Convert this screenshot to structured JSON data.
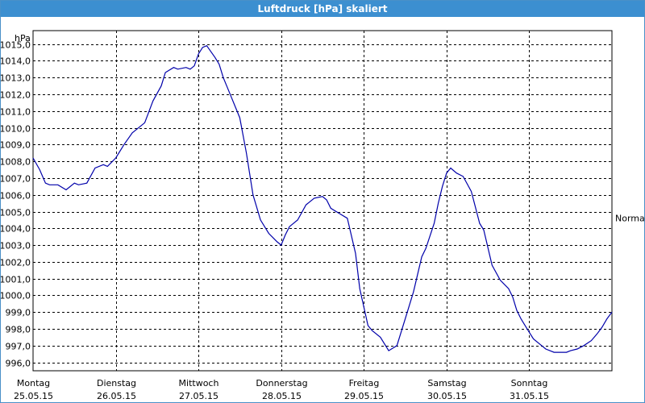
{
  "window": {
    "title": "Luftdruck [hPa] skaliert"
  },
  "colors": {
    "titlebar": "#3c8fd0",
    "line": "#0000aa",
    "grid": "#000000",
    "axis": "#000000"
  },
  "chart_data": {
    "type": "line",
    "title": "Luftdruck [hPa] skaliert",
    "ylabel": "hPa",
    "xlabel": "",
    "ylim": [
      995.5,
      1015.8
    ],
    "yticks": [
      996,
      997,
      998,
      999,
      1000,
      1001,
      1002,
      1003,
      1004,
      1005,
      1006,
      1007,
      1008,
      1009,
      1010,
      1011,
      1012,
      1013,
      1014,
      1015
    ],
    "ytick_labels": [
      "996,0",
      "997,0",
      "998,0",
      "999,0",
      "1000,0",
      "1001,0",
      "1002,0",
      "1003,0",
      "1004,0",
      "1005,0",
      "1006,0",
      "1007,0",
      "1008,0",
      "1009,0",
      "1010,0",
      "1011,0",
      "1012,0",
      "1013,0",
      "1014,0",
      "1015,0"
    ],
    "x_days": [
      {
        "day": "Montag",
        "date": "25.05.15"
      },
      {
        "day": "Dienstag",
        "date": "26.05.15"
      },
      {
        "day": "Mittwoch",
        "date": "27.05.15"
      },
      {
        "day": "Donnerstag",
        "date": "28.05.15"
      },
      {
        "day": "Freitag",
        "date": "29.05.15"
      },
      {
        "day": "Samstag",
        "date": "30.05.15"
      },
      {
        "day": "Sonntag",
        "date": "31.05.15"
      }
    ],
    "xlim": [
      0,
      7
    ],
    "reference_line": {
      "label": "Normal",
      "value": 1005.0
    },
    "grid": true,
    "series": [
      {
        "x": [
          0.0,
          0.08,
          0.15,
          0.2,
          0.3,
          0.4,
          0.5,
          0.55,
          0.65,
          0.75,
          0.85,
          0.9,
          1.0,
          1.1,
          1.2,
          1.25,
          1.35,
          1.45,
          1.55,
          1.6,
          1.7,
          1.75,
          1.85,
          1.9,
          1.95,
          2.0,
          2.05,
          2.1,
          2.2,
          2.25,
          2.3,
          2.4,
          2.5,
          2.58,
          2.66,
          2.75,
          2.85,
          2.95,
          3.0,
          3.05,
          3.1,
          3.2,
          3.3,
          3.4,
          3.5,
          3.55,
          3.6,
          3.7,
          3.8,
          3.9,
          3.95,
          4.05,
          4.1,
          4.2,
          4.3,
          4.4,
          4.5,
          4.6,
          4.7,
          4.75,
          4.85,
          4.9,
          4.95,
          5.0,
          5.05,
          5.12,
          5.2,
          5.3,
          5.4,
          5.45,
          5.55,
          5.65,
          5.75,
          5.8,
          5.85,
          5.9,
          5.95,
          6.0,
          6.05,
          6.15,
          6.2,
          6.3,
          6.35,
          6.45,
          6.5,
          6.58,
          6.66,
          6.75,
          6.82,
          6.88,
          6.94,
          7.0
        ],
        "values": [
          1008.2,
          1007.5,
          1006.7,
          1006.6,
          1006.6,
          1006.3,
          1006.7,
          1006.6,
          1006.7,
          1007.6,
          1007.8,
          1007.7,
          1008.2,
          1009.0,
          1009.7,
          1009.9,
          1010.3,
          1011.6,
          1012.5,
          1013.3,
          1013.6,
          1013.5,
          1013.6,
          1013.5,
          1013.7,
          1014.4,
          1014.8,
          1014.9,
          1014.2,
          1013.8,
          1013.0,
          1011.8,
          1010.6,
          1008.5,
          1006.0,
          1004.5,
          1003.7,
          1003.2,
          1003.0,
          1003.6,
          1004.1,
          1004.5,
          1005.4,
          1005.8,
          1005.9,
          1005.7,
          1005.2,
          1004.9,
          1004.6,
          1002.5,
          1000.4,
          998.2,
          997.9,
          997.5,
          996.7,
          997.0,
          998.6,
          1000.2,
          1002.3,
          1002.8,
          1004.3,
          1005.5,
          1006.5,
          1007.3,
          1007.6,
          1007.3,
          1007.1,
          1006.2,
          1004.3,
          1003.9,
          1001.8,
          1000.9,
          1000.4,
          999.9,
          999.1,
          998.6,
          998.2,
          997.8,
          997.4,
          997.0,
          996.8,
          996.6,
          996.6,
          996.6,
          996.7,
          996.8,
          997.0,
          997.3,
          997.7,
          998.1,
          998.6,
          999.0
        ]
      }
    ]
  }
}
